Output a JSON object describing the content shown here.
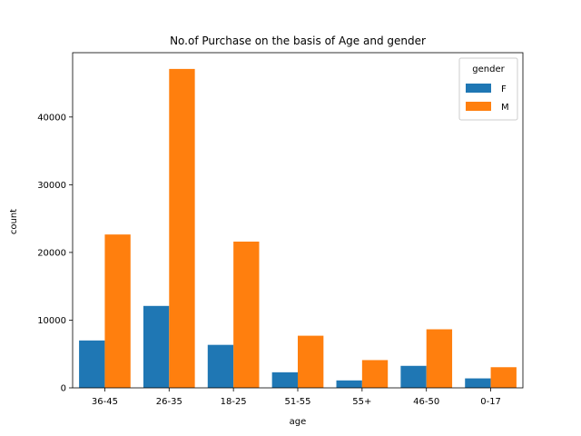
{
  "chart_data": {
    "type": "bar",
    "title": "No.of Purchase on the basis of Age and gender",
    "xlabel": "age",
    "ylabel": "count",
    "categories": [
      "36-45",
      "26-35",
      "18-25",
      "51-55",
      "55+",
      "46-50",
      "0-17"
    ],
    "series": [
      {
        "name": "F",
        "color": "#1f77b4",
        "values": [
          7000,
          12100,
          6350,
          2300,
          1100,
          3250,
          1400
        ]
      },
      {
        "name": "M",
        "color": "#ff7f0e",
        "values": [
          22650,
          47100,
          21600,
          7700,
          4100,
          8650,
          3050
        ]
      }
    ],
    "ylim": [
      0,
      49500
    ],
    "yticks": [
      0,
      10000,
      20000,
      30000,
      40000
    ],
    "grid": false,
    "legend": {
      "title": "gender",
      "placement": "top-right"
    }
  }
}
